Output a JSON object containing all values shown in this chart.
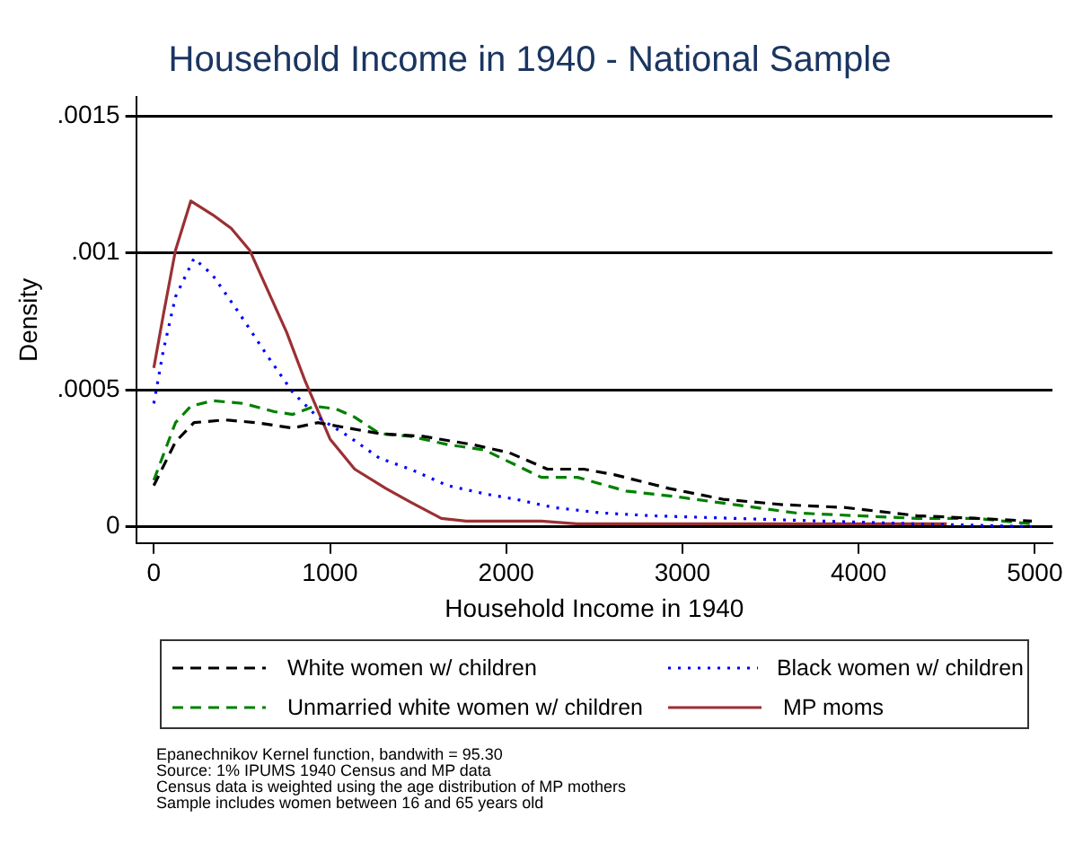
{
  "chart_data": {
    "type": "line",
    "title": "Household Income in 1940 - National Sample",
    "xlabel": "Household Income in 1940",
    "ylabel": "Density",
    "xlim": [
      -100,
      5100
    ],
    "xticks": [
      0,
      1000,
      2000,
      3000,
      4000,
      5000
    ],
    "ylim": [
      -6e-05,
      0.00157
    ],
    "yticks": [
      0,
      {
        "value": 0.0005,
        "label": ".0005"
      },
      {
        "value": 0.001,
        "label": ".001"
      },
      {
        "value": 0.0015,
        "label": ".0015"
      }
    ],
    "grid": "y",
    "legend": "bottom",
    "marker": "none",
    "series": [
      {
        "name": "White women w/ children",
        "color": "#000000",
        "line_style": "dashed",
        "x": [
          0,
          123,
          228,
          404,
          579,
          789,
          930,
          1105,
          1281,
          1526,
          1807,
          2018,
          2234,
          2440,
          2612,
          2921,
          3230,
          3574,
          3918,
          4330,
          4674,
          4983
        ],
        "values": [
          0.00015,
          0.00031,
          0.00038,
          0.00039,
          0.00038,
          0.00036,
          0.00038,
          0.00036,
          0.00034,
          0.00033,
          0.0003,
          0.00027,
          0.00021,
          0.00021,
          0.00019,
          0.00014,
          0.0001,
          8e-05,
          7e-05,
          4e-05,
          3e-05,
          2e-05
        ]
      },
      {
        "name": "Black women w/ children",
        "color": "#0000ff",
        "line_style": "dotted",
        "x": [
          0,
          53,
          123,
          228,
          333,
          474,
          649,
          789,
          930,
          1105,
          1281,
          1456,
          1667,
          1877,
          2053,
          2268,
          2543,
          2818,
          3299,
          3814,
          4330,
          4983
        ],
        "values": [
          0.00045,
          0.00064,
          0.00084,
          0.00098,
          0.00092,
          0.00079,
          0.00062,
          0.00049,
          0.0004,
          0.00033,
          0.00025,
          0.00021,
          0.00015,
          0.00012,
          0.0001,
          7e-05,
          5e-05,
          4e-05,
          3e-05,
          2e-05,
          1e-05,
          0
        ]
      },
      {
        "name": "Unmarried white women w/ children",
        "color": "#008000",
        "line_style": "dashed",
        "x": [
          0,
          123,
          210,
          333,
          509,
          684,
          789,
          912,
          1035,
          1140,
          1281,
          1456,
          1667,
          1877,
          2199,
          2405,
          2680,
          2955,
          3299,
          3643,
          3986,
          4330,
          4674,
          4983
        ],
        "values": [
          0.00017,
          0.00038,
          0.00044,
          0.00046,
          0.00045,
          0.00042,
          0.00041,
          0.00044,
          0.00043,
          0.0004,
          0.00034,
          0.00033,
          0.0003,
          0.00028,
          0.00018,
          0.00018,
          0.00013,
          0.00011,
          8e-05,
          5e-05,
          4e-05,
          3e-05,
          3e-05,
          1e-05
        ]
      },
      {
        "name": "MP moms",
        "color": "#9b3034",
        "line_style": "solid",
        "x": [
          0,
          53,
          123,
          210,
          333,
          439,
          544,
          649,
          754,
          860,
          1000,
          1140,
          1316,
          1456,
          1632,
          1772,
          2200,
          2400,
          4500
        ],
        "values": [
          0.00058,
          0.00077,
          0.00101,
          0.00119,
          0.00114,
          0.00109,
          0.00101,
          0.00086,
          0.00071,
          0.00053,
          0.00032,
          0.00021,
          0.00014,
          9e-05,
          3e-05,
          2e-05,
          2e-05,
          1e-05,
          1e-05
        ]
      }
    ],
    "annotations": [
      "Epanechnikov Kernel function, bandwith = 95.30",
      "Source: 1% IPUMS 1940 Census and MP data",
      "Census data is weighted using the age distribution of MP mothers",
      "Sample includes women between 16 and 65 years old"
    ]
  }
}
